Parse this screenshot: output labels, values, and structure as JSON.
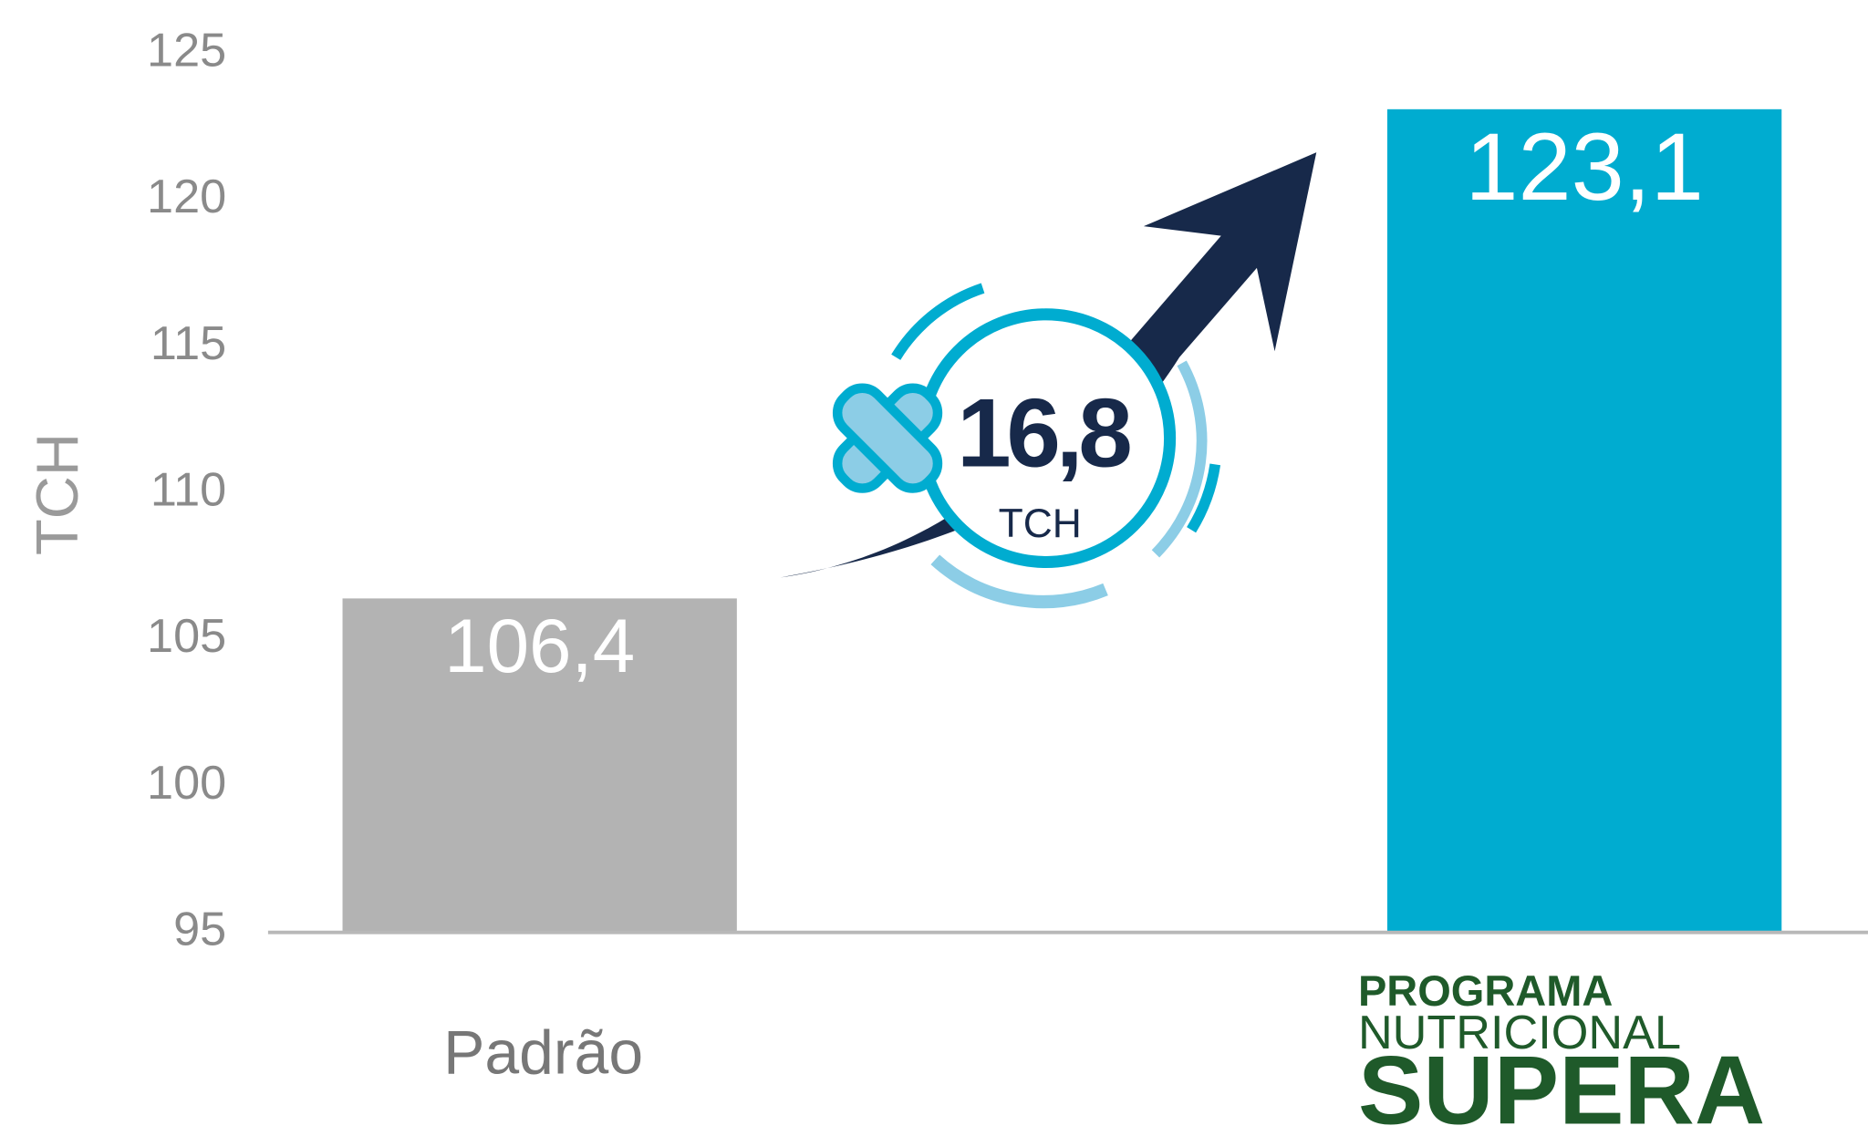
{
  "chart_data": {
    "type": "bar",
    "y_label": "TCH",
    "categories": [
      "Padrão",
      [
        "PROGRAMA",
        "NUTRICIONAL",
        "SUPERA"
      ]
    ],
    "values": [
      106.4,
      123.1
    ],
    "value_labels": [
      "106,4",
      "123,1"
    ],
    "colors": [
      "#b3b3b3",
      "#00acd0"
    ],
    "ylim": [
      95,
      125
    ],
    "yticks": [
      95,
      100,
      105,
      110,
      115,
      120,
      125
    ],
    "grid": false,
    "annotation": {
      "text": "16,8",
      "unit": "TCH"
    }
  }
}
